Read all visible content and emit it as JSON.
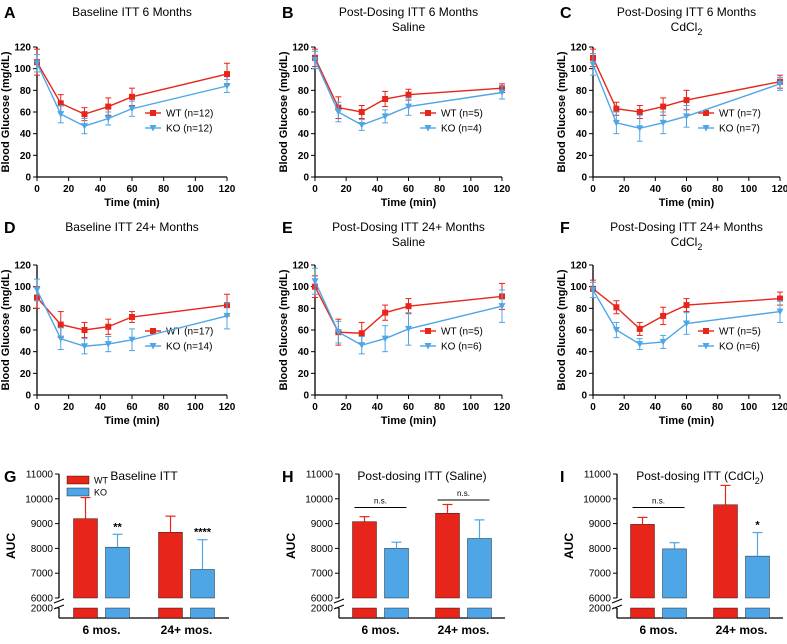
{
  "colors": {
    "wt": "#E8251A",
    "ko": "#4EA6E6",
    "axis": "#000000"
  },
  "chart_data": [
    {
      "id": "A",
      "type": "line",
      "title_lines": [
        "Baseline ITT 6 Months"
      ],
      "xlabel": "Time (min)",
      "ylabel": "Blood Glucose (mg/dL)",
      "xlim": [
        0,
        120
      ],
      "ylim": [
        0,
        120
      ],
      "xticks": [
        0,
        20,
        40,
        60,
        80,
        100,
        120
      ],
      "yticks": [
        0,
        20,
        40,
        60,
        80,
        100,
        120
      ],
      "x": [
        0,
        15,
        30,
        45,
        60,
        120
      ],
      "series": [
        {
          "name": "WT (n=12)",
          "key": "wt",
          "values": [
            106,
            68,
            58,
            65,
            74,
            95
          ],
          "errors": [
            12,
            8,
            6,
            8,
            8,
            10
          ]
        },
        {
          "name": "KO (n=12)",
          "key": "ko",
          "values": [
            105,
            58,
            47,
            54,
            63,
            84
          ],
          "errors": [
            8,
            8,
            7,
            6,
            7,
            6
          ]
        }
      ]
    },
    {
      "id": "B",
      "type": "line",
      "title_lines": [
        "Post-Dosing ITT 6 Months",
        "Saline"
      ],
      "xlabel": "Time (min)",
      "ylabel": "Blood Glucose (mg/dL)",
      "xlim": [
        0,
        120
      ],
      "ylim": [
        0,
        120
      ],
      "xticks": [
        0,
        20,
        40,
        60,
        80,
        100,
        120
      ],
      "yticks": [
        0,
        20,
        40,
        60,
        80,
        100,
        120
      ],
      "x": [
        0,
        15,
        30,
        45,
        60,
        120
      ],
      "series": [
        {
          "name": "WT (n=5)",
          "key": "wt",
          "values": [
            110,
            64,
            60,
            72,
            76,
            82
          ],
          "errors": [
            8,
            10,
            6,
            7,
            5,
            4
          ]
        },
        {
          "name": "KO (n=4)",
          "key": "ko",
          "values": [
            108,
            60,
            48,
            56,
            65,
            78
          ],
          "errors": [
            8,
            9,
            5,
            6,
            8,
            6
          ]
        }
      ]
    },
    {
      "id": "C",
      "type": "line",
      "title_lines": [
        "Post-Dosing ITT 6 Months",
        "CdCl"
      ],
      "title_sub": "2",
      "xlabel": "Time (min)",
      "ylabel": "Blood Glucose (mg/dL)",
      "xlim": [
        0,
        120
      ],
      "ylim": [
        0,
        120
      ],
      "xticks": [
        0,
        20,
        40,
        60,
        80,
        100,
        120
      ],
      "yticks": [
        0,
        20,
        40,
        60,
        80,
        100,
        120
      ],
      "x": [
        0,
        15,
        30,
        45,
        60,
        120
      ],
      "series": [
        {
          "name": "WT (n=7)",
          "key": "wt",
          "values": [
            110,
            63,
            60,
            65,
            71,
            88
          ],
          "errors": [
            8,
            6,
            6,
            8,
            9,
            6
          ]
        },
        {
          "name": "KO (n=7)",
          "key": "ko",
          "values": [
            104,
            50,
            45,
            50,
            56,
            86
          ],
          "errors": [
            10,
            10,
            12,
            10,
            10,
            6
          ]
        }
      ]
    },
    {
      "id": "D",
      "type": "line",
      "title_lines": [
        "Baseline ITT 24+ Months"
      ],
      "xlabel": "Time (min)",
      "ylabel": "Blood Glucose (mg/dL)",
      "xlim": [
        0,
        120
      ],
      "ylim": [
        0,
        120
      ],
      "xticks": [
        0,
        20,
        40,
        60,
        80,
        100,
        120
      ],
      "yticks": [
        0,
        20,
        40,
        60,
        80,
        100,
        120
      ],
      "x": [
        0,
        15,
        30,
        45,
        60,
        120
      ],
      "series": [
        {
          "name": "WT (n=17)",
          "key": "wt",
          "values": [
            90,
            65,
            60,
            63,
            72,
            83
          ],
          "errors": [
            10,
            12,
            7,
            7,
            5,
            10
          ]
        },
        {
          "name": "KO (n=14)",
          "key": "ko",
          "values": [
            97,
            52,
            45,
            47,
            51,
            73
          ],
          "errors": [
            10,
            10,
            7,
            7,
            10,
            12
          ]
        }
      ]
    },
    {
      "id": "E",
      "type": "line",
      "title_lines": [
        "Post-Dosing ITT 24+ Months",
        "Saline"
      ],
      "xlabel": "Time (min)",
      "ylabel": "Blood Glucose (mg/dL)",
      "xlim": [
        0,
        120
      ],
      "ylim": [
        0,
        120
      ],
      "xticks": [
        0,
        20,
        40,
        60,
        80,
        100,
        120
      ],
      "yticks": [
        0,
        20,
        40,
        60,
        80,
        100,
        120
      ],
      "x": [
        0,
        15,
        30,
        45,
        60,
        120
      ],
      "series": [
        {
          "name": "WT (n=5)",
          "key": "wt",
          "values": [
            100,
            58,
            57,
            76,
            82,
            91
          ],
          "errors": [
            10,
            12,
            10,
            7,
            7,
            12
          ]
        },
        {
          "name": "KO (n=6)",
          "key": "ko",
          "values": [
            105,
            58,
            46,
            52,
            61,
            82
          ],
          "errors": [
            12,
            10,
            8,
            12,
            15,
            15
          ]
        }
      ]
    },
    {
      "id": "F",
      "type": "line",
      "title_lines": [
        "Post-Dosing ITT 24+ Months",
        "CdCl"
      ],
      "title_sub": "2",
      "xlabel": "Time (min)",
      "ylabel": "Blood Glucose (mg/dL)",
      "xlim": [
        0,
        120
      ],
      "ylim": [
        0,
        120
      ],
      "xticks": [
        0,
        20,
        40,
        60,
        80,
        100,
        120
      ],
      "yticks": [
        0,
        20,
        40,
        60,
        80,
        100,
        120
      ],
      "x": [
        0,
        15,
        30,
        45,
        60,
        120
      ],
      "series": [
        {
          "name": "WT (n=5)",
          "key": "wt",
          "values": [
            98,
            81,
            61,
            73,
            83,
            89
          ],
          "errors": [
            8,
            6,
            6,
            8,
            6,
            6
          ]
        },
        {
          "name": "KO (n=6)",
          "key": "ko",
          "values": [
            97,
            60,
            47,
            49,
            66,
            77
          ],
          "errors": [
            7,
            7,
            5,
            6,
            10,
            10
          ]
        }
      ]
    },
    {
      "id": "G",
      "type": "bar",
      "title": "Baseline ITT",
      "ylabel": "AUC",
      "categories": [
        "6 mos.",
        "24+ mos."
      ],
      "ylim_upper": [
        6000,
        11000
      ],
      "yticks_upper": [
        6000,
        7000,
        8000,
        9000,
        10000,
        11000
      ],
      "ylim_lower": [
        0,
        2000
      ],
      "ytick_lower": 2000,
      "legend": [
        {
          "name": "WT",
          "key": "wt"
        },
        {
          "name": "KO",
          "key": "ko"
        }
      ],
      "series": [
        {
          "name": "WT",
          "key": "wt",
          "values": [
            9200,
            8650
          ],
          "errors": [
            850,
            650
          ]
        },
        {
          "name": "KO",
          "key": "ko",
          "values": [
            8050,
            7150
          ],
          "errors": [
            520,
            1200
          ]
        }
      ],
      "annotations": [
        {
          "text": "**",
          "category": 0,
          "series": 1
        },
        {
          "text": "****",
          "category": 1,
          "series": 1
        }
      ],
      "brackets": []
    },
    {
      "id": "H",
      "type": "bar",
      "title": "Post-dosing ITT (Saline)",
      "ylabel": "AUC",
      "categories": [
        "6 mos.",
        "24+ mos."
      ],
      "ylim_upper": [
        6000,
        11000
      ],
      "yticks_upper": [
        6000,
        7000,
        8000,
        9000,
        10000,
        11000
      ],
      "ylim_lower": [
        0,
        2000
      ],
      "ytick_lower": 2000,
      "legend": [],
      "series": [
        {
          "name": "WT",
          "key": "wt",
          "values": [
            9080,
            9420
          ],
          "errors": [
            200,
            350
          ]
        },
        {
          "name": "KO",
          "key": "ko",
          "values": [
            8000,
            8400
          ],
          "errors": [
            250,
            750
          ]
        }
      ],
      "annotations": [],
      "brackets": [
        {
          "text": "n.s.",
          "category": 0,
          "level": 9650
        },
        {
          "text": "n.s.",
          "category": 1,
          "level": 9950
        }
      ]
    },
    {
      "id": "I",
      "type": "bar",
      "title": "Post-dosing ITT (CdCl",
      "title_sub": "2",
      "title_end": ")",
      "ylabel": "AUC",
      "categories": [
        "6 mos.",
        "24+ mos."
      ],
      "ylim_upper": [
        6000,
        11000
      ],
      "yticks_upper": [
        6000,
        7000,
        8000,
        9000,
        10000,
        11000
      ],
      "ylim_lower": [
        0,
        2000
      ],
      "ytick_lower": 2000,
      "legend": [],
      "series": [
        {
          "name": "WT",
          "key": "wt",
          "values": [
            8970,
            9760
          ],
          "errors": [
            280,
            780
          ]
        },
        {
          "name": "KO",
          "key": "ko",
          "values": [
            7980,
            7690
          ],
          "errors": [
            250,
            950
          ]
        }
      ],
      "annotations": [
        {
          "text": "*",
          "category": 1,
          "series": 1
        }
      ],
      "brackets": [
        {
          "text": "n.s.",
          "category": 0,
          "level": 9650
        }
      ]
    }
  ]
}
